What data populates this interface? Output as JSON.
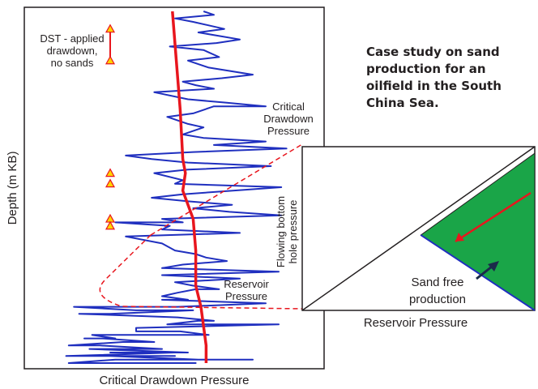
{
  "caption": "Case study on sand production for an oilfield in the South China Sea.",
  "chart_data": [
    {
      "type": "line",
      "xlabel": "Critical Drawdown Pressure",
      "ylabel": "Depth (m KB)",
      "grid": false,
      "legend": "none",
      "annotations": {
        "dst": "DST - applied drawdown, no sands",
        "critical": "Critical Drawdown Pressure",
        "reservoir": "Reservoir Pressure"
      },
      "series": [
        {
          "name": "Critical Drawdown Pressure",
          "color": "#1f2fbf",
          "x": [
            0.66,
            0.7,
            0.55,
            0.62,
            0.74,
            0.64,
            0.8,
            0.71,
            0.53,
            0.66,
            0.72,
            0.6,
            0.68,
            0.85,
            0.73,
            0.58,
            0.63,
            0.7,
            0.47,
            0.6,
            0.75,
            0.9,
            0.7,
            0.62,
            0.52,
            0.6,
            0.66,
            0.58,
            0.66,
            0.9,
            0.7,
            0.98,
            0.62,
            0.36,
            0.46,
            0.6,
            0.92,
            0.6,
            0.47,
            0.58,
            0.55,
            0.96,
            0.58,
            0.46,
            0.6,
            0.77,
            0.62,
            0.76,
            0.96,
            0.5,
            0.58,
            0.32,
            0.53,
            0.5,
            0.8,
            0.36,
            0.5,
            0.55,
            0.63,
            0.67,
            0.75,
            0.58,
            0.5,
            0.95,
            0.5,
            0.8,
            0.55,
            0.62,
            0.72,
            0.63,
            0.56,
            0.5,
            0.6,
            0.5,
            0.9,
            0.56,
            0.16,
            0.4,
            0.62,
            0.3,
            0.18,
            0.56,
            0.7,
            0.64,
            0.52,
            0.95,
            0.4,
            0.4,
            0.57,
            0.68,
            0.23,
            0.32,
            0.2,
            0.27,
            0.47,
            0.35,
            0.14,
            0.26,
            0.5,
            0.36,
            0.22,
            0.6,
            0.57,
            0.3,
            0.55,
            0.13,
            0.55,
            0.3,
            0.64,
            0.59,
            0.85,
            0.6,
            0.32,
            0.14,
            0.36,
            0.63,
            0.39
          ],
          "y": [
            0.0,
            0.01,
            0.02,
            0.03,
            0.05,
            0.06,
            0.08,
            0.09,
            0.1,
            0.11,
            0.13,
            0.14,
            0.16,
            0.18,
            0.19,
            0.2,
            0.21,
            0.22,
            0.23,
            0.25,
            0.26,
            0.27,
            0.27,
            0.29,
            0.3,
            0.32,
            0.33,
            0.35,
            0.36,
            0.37,
            0.38,
            0.39,
            0.4,
            0.41,
            0.42,
            0.43,
            0.44,
            0.45,
            0.46,
            0.48,
            0.49,
            0.5,
            0.52,
            0.53,
            0.54,
            0.55,
            0.56,
            0.57,
            0.58,
            0.59,
            0.6,
            0.6,
            0.61,
            0.62,
            0.63,
            0.64,
            0.66,
            0.68,
            0.69,
            0.7,
            0.71,
            0.72,
            0.73,
            0.74,
            0.75,
            0.76,
            0.77,
            0.78,
            0.79,
            0.79,
            0.8,
            0.81,
            0.82,
            0.82,
            0.83,
            0.84,
            0.84,
            0.85,
            0.85,
            0.86,
            0.86,
            0.87,
            0.88,
            0.88,
            0.89,
            0.89,
            0.9,
            0.91,
            0.91,
            0.92,
            0.92,
            0.93,
            0.93,
            0.93,
            0.94,
            0.94,
            0.95,
            0.95,
            0.96,
            0.96,
            0.96,
            0.97,
            0.97,
            0.97,
            0.97,
            0.98,
            0.98,
            0.98,
            0.99,
            0.99,
            0.99,
            0.99,
            0.99,
            1.0,
            1.0,
            1.0,
            1.0
          ]
        },
        {
          "name": "Reservoir Pressure",
          "color": "#e8161e",
          "x": [
            0.54,
            0.57,
            0.58,
            0.59,
            0.58,
            0.62,
            0.63,
            0.63,
            0.65,
            0.67,
            0.67
          ],
          "y": [
            0.0,
            0.28,
            0.42,
            0.46,
            0.51,
            0.59,
            0.68,
            0.78,
            0.84,
            0.95,
            1.0
          ]
        }
      ],
      "markers": [
        {
          "name": "DST - applied drawdown, no sands",
          "color": "#ffd400",
          "edge": "#e8161e",
          "x": [
            0.3,
            0.3,
            0.3,
            0.3,
            0.3,
            0.3
          ],
          "y": [
            0.05,
            0.14,
            0.46,
            0.49,
            0.59,
            0.61
          ]
        }
      ]
    },
    {
      "type": "area",
      "xlabel": "Reservoir Pressure",
      "ylabel": "Flowing bottom hole pressure",
      "annotations": {
        "region": "Sand free production"
      },
      "region_color": "#1aa548",
      "xlim": [
        0,
        1
      ],
      "ylim": [
        0,
        1
      ],
      "lines": [
        {
          "name": "diagonal",
          "x": [
            0,
            1
          ],
          "y": [
            0,
            1
          ]
        },
        {
          "name": "critical boundary",
          "x": [
            0.51,
            1
          ],
          "y": [
            0.46,
            0.96
          ]
        }
      ]
    }
  ]
}
